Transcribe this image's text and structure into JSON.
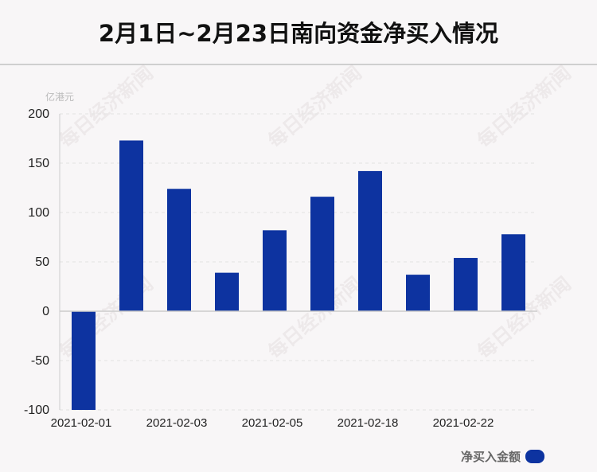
{
  "title": "2月1日~2月23日南向资金净买入情况",
  "unit_label": "亿港元",
  "watermark": "每日经济新闻",
  "legend_label": "净买入金额",
  "colors": {
    "bar": "#0d33a0",
    "axis": "#cccccc",
    "grid": "#e2e2e2",
    "text": "#222222"
  },
  "chart_data": {
    "type": "bar",
    "title": "2月1日~2月23日南向资金净买入情况",
    "ylabel": "亿港元",
    "xlabel": "",
    "ylim": [
      -100,
      200
    ],
    "yticks": [
      200,
      150,
      100,
      50,
      0,
      -50,
      -100
    ],
    "categories": [
      "2021-02-01",
      "",
      "2021-02-03",
      "",
      "2021-02-05",
      "",
      "2021-02-18",
      "",
      "2021-02-22",
      ""
    ],
    "series": [
      {
        "name": "净买入金额",
        "values": [
          -100,
          173,
          124,
          39,
          82,
          116,
          142,
          37,
          54,
          78
        ]
      }
    ],
    "grid": true,
    "legend_position": "bottom-right"
  }
}
